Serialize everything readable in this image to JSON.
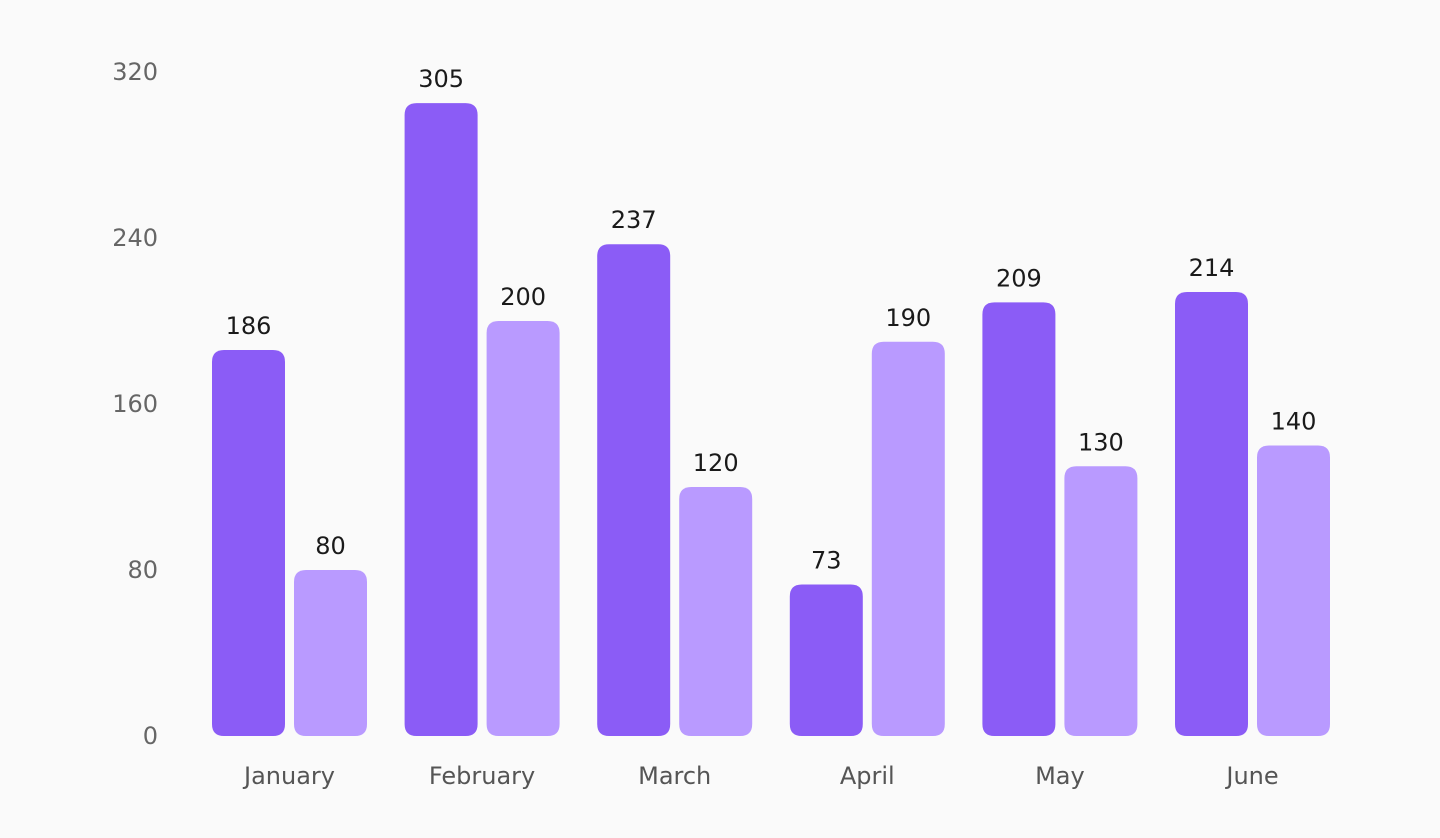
{
  "chart_data": {
    "type": "bar",
    "title": "",
    "xlabel": "",
    "ylabel": "",
    "categories": [
      "January",
      "February",
      "March",
      "April",
      "May",
      "June"
    ],
    "series": [
      {
        "values": [
          186,
          305,
          237,
          73,
          209,
          214
        ],
        "color": "#8b5cf6"
      },
      {
        "values": [
          80,
          200,
          120,
          190,
          130,
          140
        ],
        "color": "#b99aff"
      }
    ],
    "ylim": [
      0,
      320
    ],
    "yticks": [
      0,
      80,
      160,
      240,
      320
    ],
    "grid": false,
    "legend": "none",
    "data_labels": true
  }
}
